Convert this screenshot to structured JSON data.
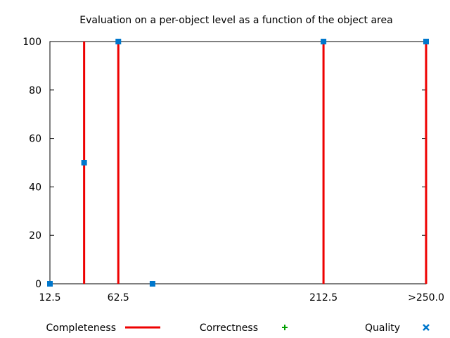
{
  "chart_data": {
    "type": "line",
    "title": "Evaluation on a per-object level as a function of the object area",
    "xlabel": "",
    "ylabel": "",
    "x_ticks": [
      {
        "value": 12.5,
        "label": "12.5"
      },
      {
        "value": 62.5,
        "label": "62.5"
      },
      {
        "value": 212.5,
        "label": "212.5"
      },
      {
        "value": 287.5,
        "label": ">250.0"
      }
    ],
    "y_ticks": [
      0,
      20,
      40,
      60,
      80,
      100
    ],
    "xlim": [
      12.5,
      287.5
    ],
    "ylim": [
      0,
      100
    ],
    "grid": false,
    "legend_position": "bottom",
    "series": [
      {
        "name": "Completeness",
        "style": "impulses",
        "color": "#ee0000",
        "x": [
          12.5,
          37.5,
          62.5,
          87.5,
          212.5,
          287.5
        ],
        "y": [
          0,
          100,
          100,
          0,
          100,
          100
        ]
      },
      {
        "name": "Correctness",
        "style": "points",
        "marker": "plus",
        "color": "#00a000",
        "x": [],
        "y": []
      },
      {
        "name": "Quality",
        "style": "points",
        "marker": "square",
        "color": "#0077cc",
        "x": [
          12.5,
          37.5,
          62.5,
          87.5,
          212.5,
          287.5
        ],
        "y": [
          0,
          50,
          100,
          0,
          100,
          100
        ]
      }
    ]
  }
}
